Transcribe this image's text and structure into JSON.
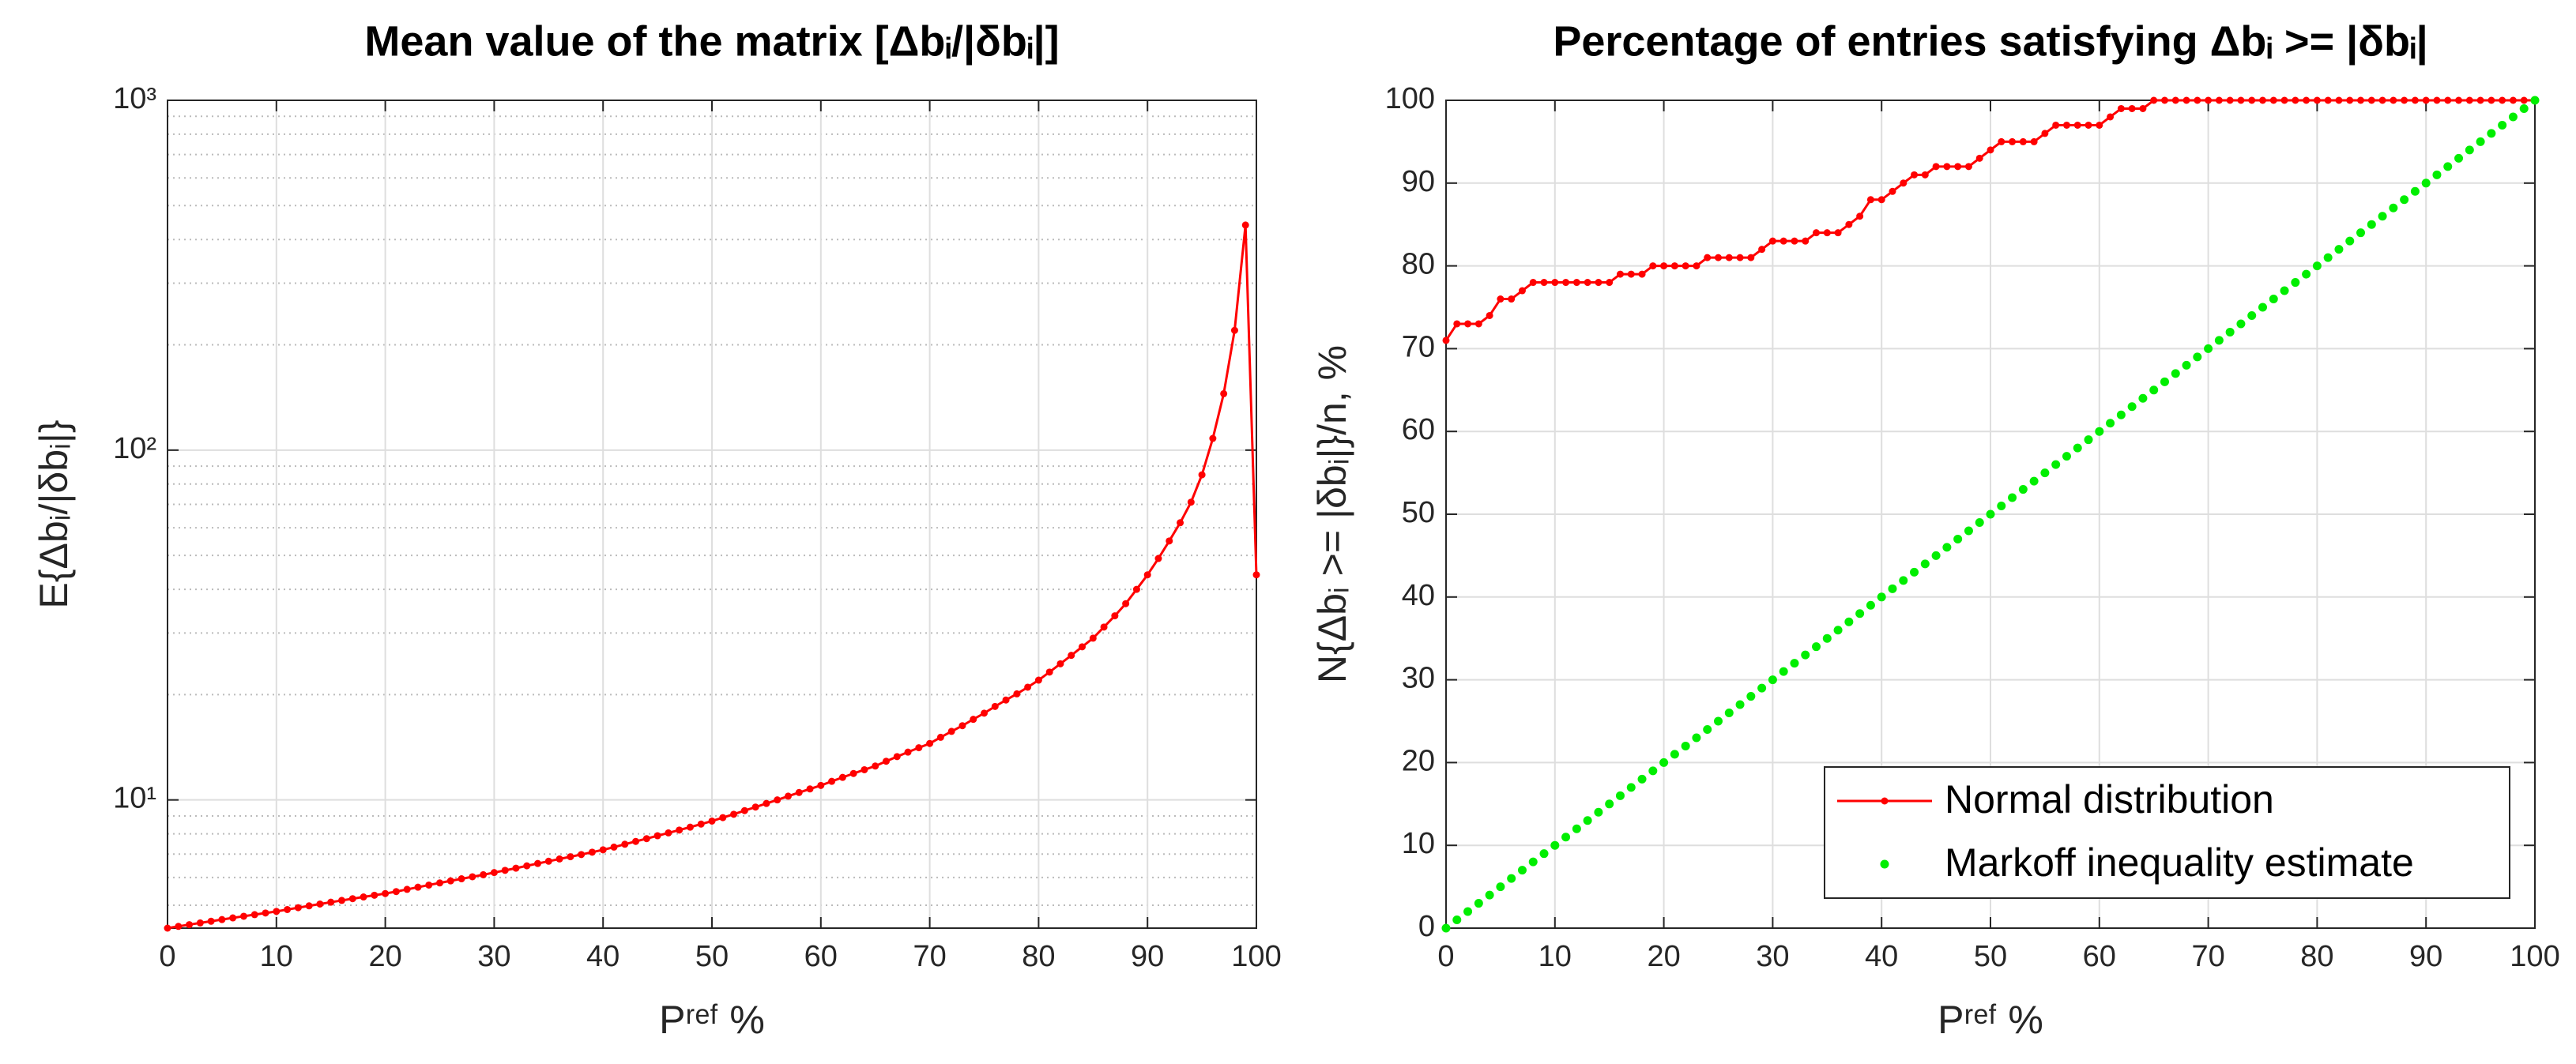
{
  "chart_data": [
    {
      "type": "line",
      "title": "Mean value of the matrix [Δbᵢ/|δbᵢ|]",
      "xlabel": "Pʳᵉᶠ %",
      "ylabel": "E{Δbᵢ/|δbᵢ|}",
      "log_y": true,
      "grid": true,
      "xlim": [
        0,
        100
      ],
      "xticks": [
        0,
        10,
        20,
        30,
        40,
        50,
        60,
        70,
        80,
        90,
        100
      ],
      "ylim": [
        4.3,
        1000
      ],
      "yticks": [
        {
          "value": 10,
          "label": "10¹"
        },
        {
          "value": 100,
          "label": "10²"
        },
        {
          "value": 1000,
          "label": "10³"
        }
      ],
      "yminorticks": [
        5,
        6,
        7,
        8,
        9,
        20,
        30,
        40,
        50,
        60,
        70,
        80,
        90,
        200,
        300,
        400,
        500,
        600,
        700,
        800,
        900
      ],
      "x": [
        0,
        1,
        2,
        3,
        4,
        5,
        6,
        7,
        8,
        9,
        10,
        11,
        12,
        13,
        14,
        15,
        16,
        17,
        18,
        19,
        20,
        21,
        22,
        23,
        24,
        25,
        26,
        27,
        28,
        29,
        30,
        31,
        32,
        33,
        34,
        35,
        36,
        37,
        38,
        39,
        40,
        41,
        42,
        43,
        44,
        45,
        46,
        47,
        48,
        49,
        50,
        51,
        52,
        53,
        54,
        55,
        56,
        57,
        58,
        59,
        60,
        61,
        62,
        63,
        64,
        65,
        66,
        67,
        68,
        69,
        70,
        71,
        72,
        73,
        74,
        75,
        76,
        77,
        78,
        79,
        80,
        81,
        82,
        83,
        84,
        85,
        86,
        87,
        88,
        89,
        90,
        91,
        92,
        93,
        94,
        95,
        96,
        97,
        98,
        99,
        100
      ],
      "series": [
        {
          "color": "#ff0000",
          "linestyle": "solid",
          "marker": "dot",
          "values": [
            4.3,
            4.35,
            4.4,
            4.45,
            4.5,
            4.55,
            4.6,
            4.65,
            4.7,
            4.75,
            4.8,
            4.86,
            4.92,
            4.98,
            5.04,
            5.1,
            5.16,
            5.22,
            5.28,
            5.34,
            5.4,
            5.47,
            5.55,
            5.63,
            5.71,
            5.79,
            5.87,
            5.95,
            6.03,
            6.11,
            6.2,
            6.29,
            6.38,
            6.48,
            6.58,
            6.68,
            6.78,
            6.88,
            6.98,
            7.09,
            7.2,
            7.33,
            7.47,
            7.61,
            7.75,
            7.9,
            8.05,
            8.2,
            8.36,
            8.53,
            8.7,
            8.9,
            9.1,
            9.32,
            9.54,
            9.77,
            10.0,
            10.25,
            10.5,
            10.75,
            11.0,
            11.3,
            11.6,
            11.9,
            12.2,
            12.5,
            12.9,
            13.3,
            13.7,
            14.1,
            14.5,
            15.1,
            15.7,
            16.3,
            17.0,
            17.7,
            18.5,
            19.3,
            20.1,
            21.0,
            22.0,
            23.2,
            24.5,
            25.9,
            27.4,
            29.0,
            31.2,
            33.6,
            36.4,
            40,
            44,
            49,
            55,
            62,
            71,
            85,
            108,
            145,
            220,
            440,
            44
          ]
        }
      ]
    },
    {
      "type": "line",
      "title": "Percentage of entries satisfying Δbᵢ >= |δbᵢ|",
      "xlabel": "Pʳᵉᶠ %",
      "ylabel": "N{Δbᵢ >= |δbᵢ|}/n, %",
      "grid": true,
      "legend": "lower right",
      "xlim": [
        0,
        100
      ],
      "xticks": [
        0,
        10,
        20,
        30,
        40,
        50,
        60,
        70,
        80,
        90,
        100
      ],
      "ylim": [
        0,
        100
      ],
      "yticks": [
        0,
        10,
        20,
        30,
        40,
        50,
        60,
        70,
        80,
        90,
        100
      ],
      "x": [
        0,
        1,
        2,
        3,
        4,
        5,
        6,
        7,
        8,
        9,
        10,
        11,
        12,
        13,
        14,
        15,
        16,
        17,
        18,
        19,
        20,
        21,
        22,
        23,
        24,
        25,
        26,
        27,
        28,
        29,
        30,
        31,
        32,
        33,
        34,
        35,
        36,
        37,
        38,
        39,
        40,
        41,
        42,
        43,
        44,
        45,
        46,
        47,
        48,
        49,
        50,
        51,
        52,
        53,
        54,
        55,
        56,
        57,
        58,
        59,
        60,
        61,
        62,
        63,
        64,
        65,
        66,
        67,
        68,
        69,
        70,
        71,
        72,
        73,
        74,
        75,
        76,
        77,
        78,
        79,
        80,
        81,
        82,
        83,
        84,
        85,
        86,
        87,
        88,
        89,
        90,
        91,
        92,
        93,
        94,
        95,
        96,
        97,
        98,
        99,
        100
      ],
      "series": [
        {
          "name": "Normal distribution",
          "color": "#ff0000",
          "linestyle": "solid",
          "marker": "dot",
          "values": [
            71,
            73,
            73,
            73,
            74,
            76,
            76,
            77,
            78,
            78,
            78,
            78,
            78,
            78,
            78,
            78,
            79,
            79,
            79,
            80,
            80,
            80,
            80,
            80,
            81,
            81,
            81,
            81,
            81,
            82,
            83,
            83,
            83,
            83,
            84,
            84,
            84,
            85,
            86,
            88,
            88,
            89,
            90,
            91,
            91,
            92,
            92,
            92,
            92,
            93,
            94,
            95,
            95,
            95,
            95,
            96,
            97,
            97,
            97,
            97,
            97,
            98,
            99,
            99,
            99,
            100,
            100,
            100,
            100,
            100,
            100,
            100,
            100,
            100,
            100,
            100,
            100,
            100,
            100,
            100,
            100,
            100,
            100,
            100,
            100,
            100,
            100,
            100,
            100,
            100,
            100,
            100,
            100,
            100,
            100,
            100,
            100,
            100,
            100,
            100,
            100
          ]
        },
        {
          "name": "Markoff inequality estimate",
          "color": "#00ee00",
          "linestyle": "none",
          "marker": "bigdot",
          "values": [
            0,
            1,
            2,
            3,
            4,
            5,
            6,
            7,
            8,
            9,
            10,
            11,
            12,
            13,
            14,
            15,
            16,
            17,
            18,
            19,
            20,
            21,
            22,
            23,
            24,
            25,
            26,
            27,
            28,
            29,
            30,
            31,
            32,
            33,
            34,
            35,
            36,
            37,
            38,
            39,
            40,
            41,
            42,
            43,
            44,
            45,
            46,
            47,
            48,
            49,
            50,
            51,
            52,
            53,
            54,
            55,
            56,
            57,
            58,
            59,
            60,
            61,
            62,
            63,
            64,
            65,
            66,
            67,
            68,
            69,
            70,
            71,
            72,
            73,
            74,
            75,
            76,
            77,
            78,
            79,
            80,
            81,
            82,
            83,
            84,
            85,
            86,
            87,
            88,
            89,
            90,
            91,
            92,
            93,
            94,
            95,
            96,
            97,
            98,
            99,
            100
          ]
        }
      ]
    }
  ]
}
